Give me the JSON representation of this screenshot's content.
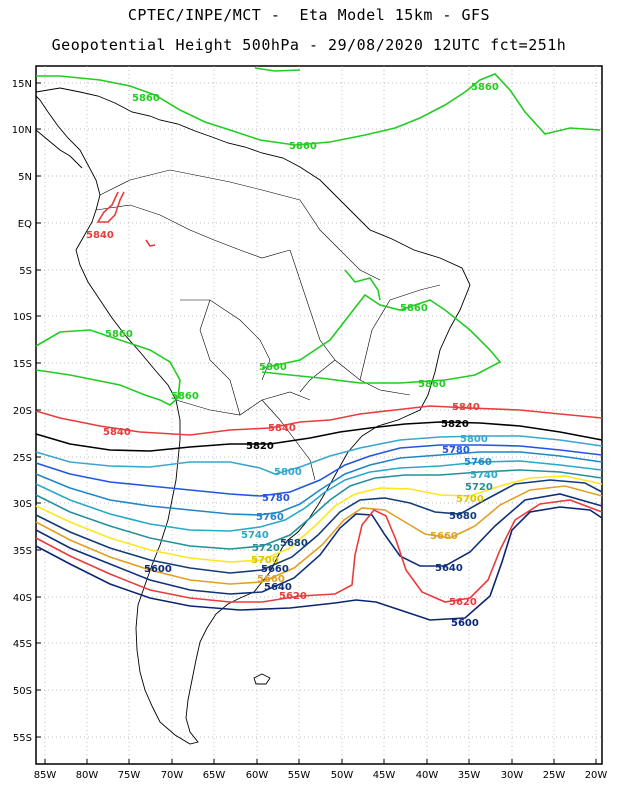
{
  "header": {
    "line1": "CPTEC/INPE/MCT -  Eta Model 15km - GFS",
    "line2": "Geopotential Height 500hPa - 29/08/2020 12UTC fct=251h"
  },
  "axes": {
    "lat_labels": [
      "15N",
      "10N",
      "5N",
      "EQ",
      "5S",
      "10S",
      "15S",
      "20S",
      "25S",
      "30S",
      "35S",
      "40S",
      "45S",
      "50S",
      "55S"
    ],
    "lon_labels": [
      "85W",
      "80W",
      "75W",
      "70W",
      "65W",
      "60W",
      "55W",
      "50W",
      "45W",
      "40W",
      "35W",
      "30W",
      "25W",
      "20W"
    ]
  },
  "contours": [
    {
      "value": "5860",
      "color": "#22cc22"
    },
    {
      "value": "5840",
      "color": "#e83c3c"
    },
    {
      "value": "5820",
      "color": "#000000"
    },
    {
      "value": "5800",
      "color": "#3aa6cf"
    },
    {
      "value": "5780",
      "color": "#2255e0"
    },
    {
      "value": "5760",
      "color": "#1f86c8"
    },
    {
      "value": "5740",
      "color": "#2aa8c8"
    },
    {
      "value": "5720",
      "color": "#25909a"
    },
    {
      "value": "5700",
      "color": "#ffe61a"
    },
    {
      "value": "5680",
      "color": "#123c78"
    },
    {
      "value": "5660",
      "color": "#e0a020"
    },
    {
      "value": "5640",
      "color": "#10307a"
    },
    {
      "value": "5620",
      "color": "#e83c3c"
    },
    {
      "value": "5600",
      "color": "#0b2670"
    }
  ],
  "labels": [
    {
      "text": "5860",
      "color": "#22cc22"
    },
    {
      "text": "5860",
      "color": "#22cc22"
    },
    {
      "text": "5860",
      "color": "#22cc22"
    },
    {
      "text": "5860",
      "color": "#22cc22"
    },
    {
      "text": "5860",
      "color": "#22cc22"
    },
    {
      "text": "5860",
      "color": "#22cc22"
    },
    {
      "text": "5860",
      "color": "#22cc22"
    },
    {
      "text": "5860",
      "color": "#22cc22"
    },
    {
      "text": "5840",
      "color": "#e83c3c"
    },
    {
      "text": "5840",
      "color": "#e83c3c"
    },
    {
      "text": "5840",
      "color": "#e83c3c"
    },
    {
      "text": "5840",
      "color": "#e83c3c"
    },
    {
      "text": "5820",
      "color": "#000000"
    },
    {
      "text": "5820",
      "color": "#000000"
    },
    {
      "text": "5800",
      "color": "#3aa6cf"
    },
    {
      "text": "5800",
      "color": "#3aa6cf"
    },
    {
      "text": "5780",
      "color": "#2255e0"
    },
    {
      "text": "5780",
      "color": "#2255e0"
    },
    {
      "text": "5760",
      "color": "#1f86c8"
    },
    {
      "text": "5760",
      "color": "#1f86c8"
    },
    {
      "text": "5740",
      "color": "#2aa8c8"
    },
    {
      "text": "5740",
      "color": "#2aa8c8"
    },
    {
      "text": "5720",
      "color": "#25909a"
    },
    {
      "text": "5720",
      "color": "#25909a"
    },
    {
      "text": "5700",
      "color": "#e0c400"
    },
    {
      "text": "5700",
      "color": "#e0c400"
    },
    {
      "text": "5680",
      "color": "#123c78"
    },
    {
      "text": "5680",
      "color": "#123c78"
    },
    {
      "text": "5660",
      "color": "#e0a020"
    },
    {
      "text": "5660",
      "color": "#e0a020"
    },
    {
      "text": "5660",
      "color": "#10307a"
    },
    {
      "text": "5640",
      "color": "#10307a"
    },
    {
      "text": "5640",
      "color": "#10307a"
    },
    {
      "text": "5620",
      "color": "#e83c3c"
    },
    {
      "text": "5620",
      "color": "#e83c3c"
    },
    {
      "text": "5600",
      "color": "#0b2670"
    },
    {
      "text": "5600",
      "color": "#0b2670"
    }
  ]
}
